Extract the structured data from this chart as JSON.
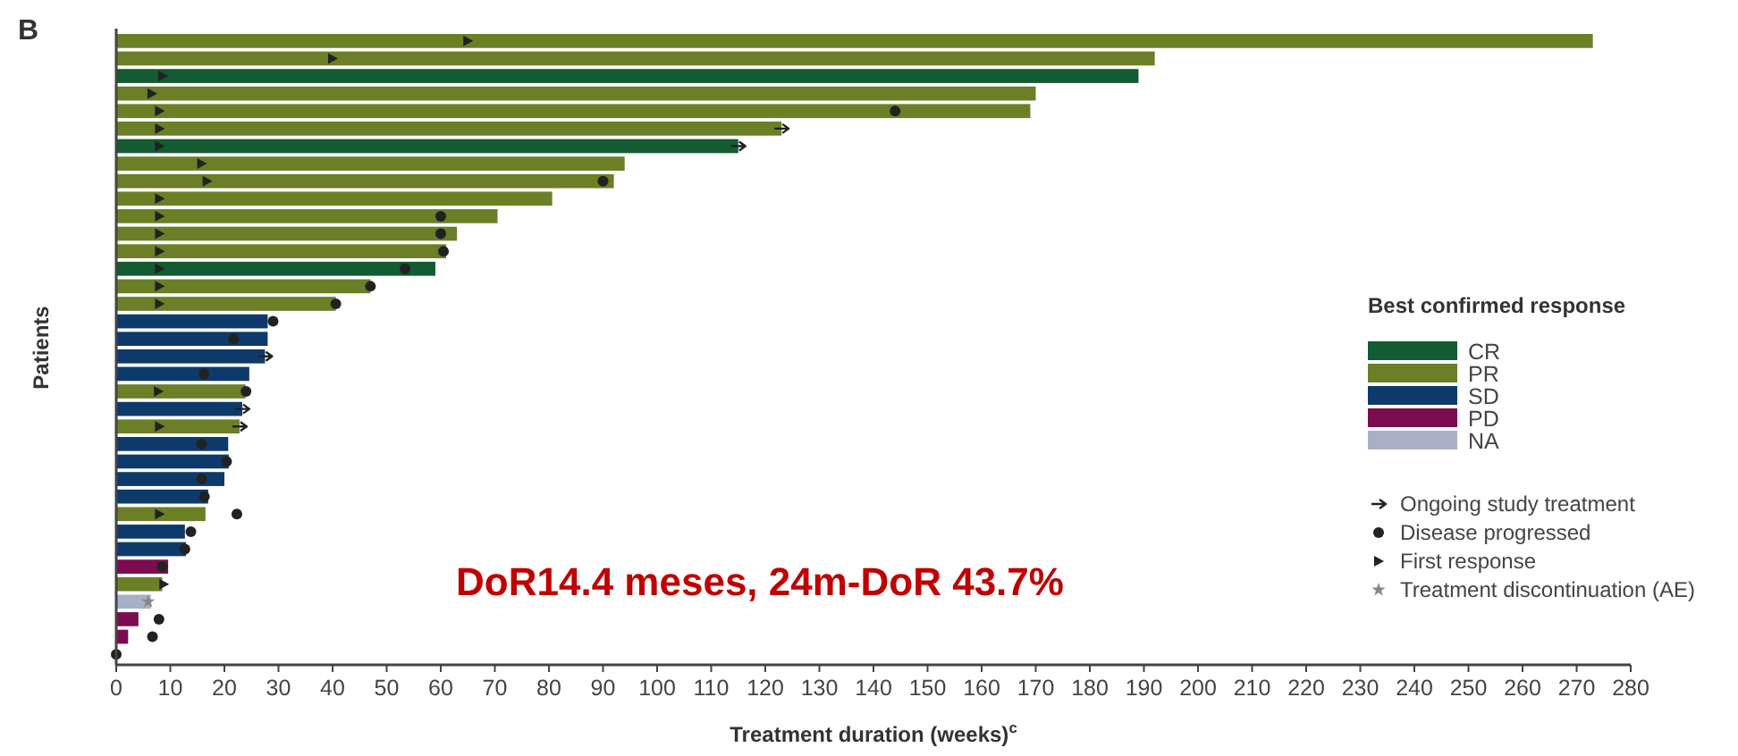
{
  "chart_data": {
    "type": "bar",
    "orientation": "horizontal",
    "title": "B",
    "xlabel": "Treatment duration (weeks)$^{c}$",
    "ylabel": "Patients",
    "legend_title": "Best confirmed response",
    "legend": "right",
    "xlim": [
      0,
      280
    ],
    "xticks": [
      0,
      10,
      20,
      30,
      40,
      50,
      60,
      70,
      80,
      90,
      100,
      110,
      120,
      130,
      140,
      150,
      160,
      170,
      180,
      190,
      200,
      210,
      220,
      230,
      240,
      250,
      260,
      270,
      280
    ],
    "categories": [
      null,
      null,
      null,
      null,
      null,
      null,
      null,
      null,
      null,
      null,
      null,
      null,
      null,
      null,
      null,
      null,
      null,
      null,
      null,
      null,
      null,
      null,
      null,
      null,
      null,
      null,
      null,
      null,
      null,
      null,
      null,
      null,
      null,
      null,
      null,
      null
    ],
    "series": [
      {
        "name": "CR",
        "color": "#145a32",
        "values": [
          null,
          null,
          189,
          null,
          null,
          null,
          115,
          null,
          null,
          null,
          null,
          null,
          null,
          59,
          null,
          null,
          null,
          null,
          null,
          null,
          null,
          null,
          null,
          null,
          null,
          null,
          null,
          null,
          null,
          null,
          null,
          null,
          null,
          null,
          null,
          null
        ]
      },
      {
        "name": "PR",
        "color": "#6b7f27",
        "values": [
          273,
          192,
          null,
          170,
          169,
          123,
          null,
          94,
          92,
          80.6,
          70.5,
          63,
          61,
          null,
          47,
          40.6,
          null,
          null,
          null,
          null,
          23.9,
          null,
          22.8,
          null,
          null,
          null,
          null,
          16.5,
          null,
          null,
          null,
          8.5,
          null,
          null,
          null,
          null
        ]
      },
      {
        "name": "SD",
        "color": "#0e3a6b",
        "values": [
          null,
          null,
          null,
          null,
          null,
          null,
          null,
          null,
          null,
          null,
          null,
          null,
          null,
          null,
          null,
          null,
          28,
          28,
          27.5,
          24.6,
          null,
          23.3,
          null,
          20.7,
          20.8,
          20,
          17,
          null,
          12.7,
          12.9,
          null,
          null,
          null,
          null,
          null,
          null
        ]
      },
      {
        "name": "PD",
        "color": "#7b0c4f",
        "values": [
          null,
          null,
          null,
          null,
          null,
          null,
          null,
          null,
          null,
          null,
          null,
          null,
          null,
          null,
          null,
          null,
          null,
          null,
          null,
          null,
          null,
          null,
          null,
          null,
          null,
          null,
          null,
          null,
          null,
          null,
          9.6,
          null,
          null,
          4.1,
          2.2,
          null
        ]
      },
      {
        "name": "NA",
        "color": "#a8b0c8",
        "values": [
          null,
          null,
          null,
          null,
          null,
          null,
          null,
          null,
          null,
          null,
          null,
          null,
          null,
          null,
          null,
          null,
          null,
          null,
          null,
          null,
          null,
          null,
          null,
          null,
          null,
          null,
          null,
          null,
          null,
          null,
          null,
          null,
          6.4,
          null,
          null,
          null
        ]
      },
      {
        "type": "scatter",
        "name": "Ongoing study treatment",
        "marker": "cross",
        "color": "#222222",
        "values": [
          null,
          null,
          null,
          null,
          null,
          123,
          115,
          null,
          null,
          null,
          null,
          null,
          null,
          null,
          null,
          null,
          null,
          null,
          27.5,
          null,
          null,
          23.3,
          22.8,
          null,
          null,
          null,
          null,
          null,
          null,
          null,
          null,
          null,
          null,
          null,
          null,
          null
        ]
      },
      {
        "type": "scatter",
        "name": "Disease progressed",
        "marker": "circle",
        "color": "#222222",
        "values": [
          null,
          null,
          null,
          null,
          144,
          null,
          null,
          null,
          90,
          null,
          60,
          60,
          60.5,
          53.4,
          47,
          40.6,
          29,
          21.7,
          null,
          16.2,
          24,
          null,
          null,
          15.8,
          20.4,
          15.8,
          16.3,
          22.3,
          13.8,
          12.7,
          8.5,
          null,
          null,
          7.9,
          6.7,
          0
        ]
      },
      {
        "type": "scatter",
        "name": "First response",
        "marker": "triangle",
        "color": "#222222",
        "values": [
          65,
          40,
          8.6,
          6.6,
          8,
          8,
          8,
          15.8,
          16.8,
          8,
          8,
          8,
          8,
          8,
          8,
          8,
          null,
          null,
          null,
          null,
          7.8,
          null,
          8,
          null,
          null,
          null,
          null,
          8,
          null,
          null,
          null,
          8.8,
          null,
          null,
          null,
          null
        ]
      },
      {
        "type": "scatter",
        "name": "Treatment discontinuation (AE)",
        "marker": "star",
        "color": "#888888",
        "values": [
          null,
          null,
          null,
          null,
          null,
          null,
          null,
          null,
          null,
          null,
          null,
          null,
          null,
          null,
          null,
          null,
          null,
          null,
          null,
          null,
          null,
          null,
          null,
          null,
          null,
          null,
          null,
          null,
          null,
          null,
          null,
          null,
          5.9,
          null,
          null,
          null
        ]
      }
    ],
    "annotations": [
      "DoR14.4 meses, 24m-DoR 43.7%"
    ]
  }
}
